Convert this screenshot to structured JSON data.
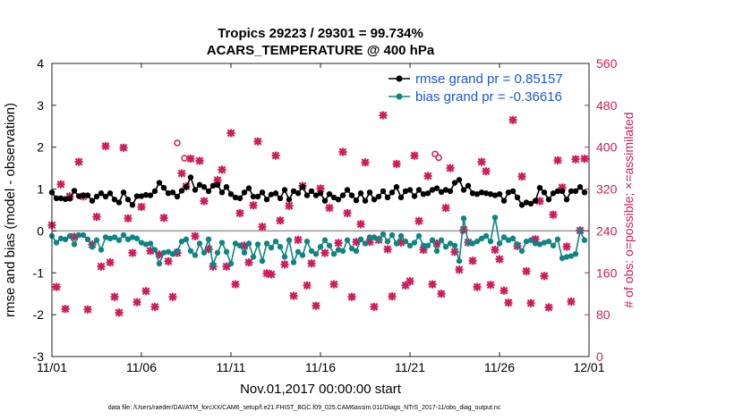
{
  "chart_data": {
    "type": "line",
    "title_line1": "Tropics 29223 / 29301 = 99.734%",
    "title_line2": "ACARS_TEMPERATURE @ 400 hPa",
    "ylabel": "rmse and bias (model - observation)",
    "ylabel_right": "# of obs: o=possible; ×=assimilated",
    "xlabel": "Nov.01,2017 00:00:00 start",
    "footer": "data file: /Users/raeder/DAI/ATM_forcXX/CAM6_setup/f.e21.FHIST_BGC.f09_025.CAM6assim.011/Diags_NTrS_2017-11/obs_diag_output.nc",
    "x_tick_labels": [
      "11/01",
      "11/06",
      "11/11",
      "11/16",
      "11/21",
      "11/26",
      "12/01"
    ],
    "x_tick_days": [
      0,
      5,
      10,
      15,
      20,
      25,
      30
    ],
    "y_tick_labels": [
      "-3",
      "-2",
      "-1",
      "0",
      "1",
      "2",
      "3",
      "4"
    ],
    "ylim": [
      -3,
      4
    ],
    "y2_tick_labels": [
      "0",
      "80",
      "160",
      "240",
      "320",
      "400",
      "480",
      "560"
    ],
    "y2lim": [
      0,
      560
    ],
    "xlim": [
      0,
      30
    ],
    "x": [
      0.0,
      0.25,
      0.5,
      0.75,
      1.0,
      1.25,
      1.5,
      1.75,
      2.0,
      2.25,
      2.5,
      2.75,
      3.0,
      3.25,
      3.5,
      3.75,
      4.0,
      4.25,
      4.5,
      4.75,
      5.0,
      5.25,
      5.5,
      5.75,
      6.0,
      6.25,
      6.5,
      6.75,
      7.0,
      7.25,
      7.5,
      7.75,
      8.0,
      8.25,
      8.5,
      8.75,
      9.0,
      9.25,
      9.5,
      9.75,
      10.0,
      10.25,
      10.5,
      10.75,
      11.0,
      11.25,
      11.5,
      11.75,
      12.0,
      12.25,
      12.5,
      12.75,
      13.0,
      13.25,
      13.5,
      13.75,
      14.0,
      14.25,
      14.5,
      14.75,
      15.0,
      15.25,
      15.5,
      15.75,
      16.0,
      16.25,
      16.5,
      16.75,
      17.0,
      17.25,
      17.5,
      17.75,
      18.0,
      18.25,
      18.5,
      18.75,
      19.0,
      19.25,
      19.5,
      19.75,
      20.0,
      20.25,
      20.5,
      20.75,
      21.0,
      21.25,
      21.5,
      21.75,
      22.0,
      22.25,
      22.5,
      22.75,
      23.0,
      23.25,
      23.5,
      23.75,
      24.0,
      24.25,
      24.5,
      24.75,
      25.0,
      25.25,
      25.5,
      25.75,
      26.0,
      26.25,
      26.5,
      26.75,
      27.0,
      27.25,
      27.5,
      27.75,
      28.0,
      28.25,
      28.5,
      28.75,
      29.0,
      29.25,
      29.5,
      29.75
    ],
    "series": [
      {
        "name": "rmse grand pr = 0.85157",
        "color": "#000000",
        "marker": "circle",
        "values": [
          0.92,
          0.78,
          0.78,
          0.76,
          0.77,
          0.96,
          0.83,
          0.85,
          0.85,
          0.72,
          0.82,
          0.9,
          0.82,
          0.9,
          0.75,
          0.68,
          0.92,
          0.75,
          0.62,
          0.83,
          0.83,
          0.86,
          0.85,
          0.95,
          1.15,
          1.03,
          0.9,
          0.92,
          0.82,
          0.96,
          1.05,
          1.28,
          0.98,
          1.1,
          1.05,
          0.95,
          1.08,
          1.1,
          0.92,
          1.05,
          0.88,
          0.8,
          0.78,
          0.92,
          1.02,
          0.82,
          0.82,
          0.92,
          0.75,
          0.87,
          0.9,
          0.78,
          0.98,
          0.75,
          0.95,
          0.9,
          1.05,
          0.85,
          0.95,
          0.85,
          0.9,
          0.72,
          0.88,
          0.8,
          0.75,
          0.85,
          0.98,
          0.85,
          0.73,
          0.9,
          0.72,
          0.92,
          0.75,
          0.82,
          0.95,
          0.8,
          0.92,
          1.05,
          0.8,
          0.95,
          0.98,
          0.83,
          0.98,
          0.88,
          0.9,
          0.98,
          1.02,
          0.93,
          0.98,
          0.95,
          1.15,
          1.22,
          0.98,
          1.08,
          0.9,
          0.88,
          0.92,
          0.9,
          0.88,
          0.85,
          0.88,
          0.72,
          0.92,
          0.95,
          0.8,
          0.62,
          0.68,
          0.65,
          0.72,
          1.03,
          0.92,
          0.75,
          0.9,
          0.95,
          0.95,
          0.75,
          0.95,
          0.95,
          1.05,
          0.92
        ]
      },
      {
        "name": "bias grand pr = -0.36616",
        "color": "#0e8582",
        "marker": "circle",
        "values": [
          -0.12,
          -0.28,
          -0.18,
          -0.2,
          -0.12,
          -0.32,
          -0.1,
          -0.1,
          -0.2,
          -0.38,
          -0.22,
          -0.45,
          -0.15,
          -0.18,
          -0.15,
          -0.22,
          -0.1,
          -0.2,
          -0.15,
          -0.18,
          -0.28,
          -0.32,
          -0.3,
          -0.45,
          -0.78,
          -0.52,
          -0.5,
          -0.55,
          -0.48,
          -0.25,
          -0.2,
          -0.48,
          -0.58,
          -0.3,
          -0.52,
          -0.2,
          -0.8,
          -0.52,
          -0.28,
          -0.5,
          -0.78,
          -0.3,
          -0.35,
          -0.52,
          -0.3,
          -0.62,
          -0.32,
          -0.72,
          -0.3,
          -0.4,
          -0.25,
          -0.38,
          -0.62,
          -0.22,
          -0.75,
          -0.5,
          -0.58,
          -0.25,
          -0.48,
          -0.55,
          -0.38,
          -0.22,
          -0.35,
          -0.55,
          -0.45,
          -0.48,
          -0.22,
          -0.42,
          -0.48,
          -0.2,
          -0.3,
          -0.15,
          -0.15,
          -0.2,
          -0.08,
          -0.25,
          -0.1,
          -0.3,
          -0.12,
          -0.25,
          -0.35,
          -0.28,
          -0.12,
          -0.35,
          -0.35,
          -0.22,
          -0.48,
          -0.22,
          -0.38,
          -0.3,
          -0.35,
          -0.72,
          0.3,
          -0.28,
          -0.3,
          -0.25,
          -0.18,
          -0.12,
          -0.25,
          0.32,
          -0.3,
          -0.15,
          -0.22,
          -0.18,
          -0.32,
          -0.48,
          -0.25,
          -0.22,
          -0.3,
          -0.32,
          -0.28,
          -0.25,
          -0.35,
          -0.2,
          -0.65,
          -0.62,
          -0.6,
          -0.55,
          0.0,
          -0.22
        ]
      }
    ],
    "obs_possible": {
      "name": "# of obs possible",
      "color": "#d01c5b",
      "marker": "o",
      "x": [
        7.0,
        7.4,
        21.4,
        21.6
      ],
      "values": [
        408,
        379,
        387,
        380
      ]
    },
    "obs_assimilated": {
      "name": "# of obs assimilated",
      "color": "#d01c5b",
      "marker": "×",
      "x": [
        0.0,
        0.25,
        0.5,
        0.75,
        1.0,
        1.25,
        1.5,
        1.75,
        2.0,
        2.25,
        2.5,
        2.75,
        3.0,
        3.25,
        3.5,
        3.75,
        4.0,
        4.25,
        4.5,
        4.75,
        5.0,
        5.25,
        5.5,
        5.75,
        6.0,
        6.25,
        6.5,
        6.75,
        7.0,
        7.25,
        7.5,
        7.75,
        8.0,
        8.25,
        8.5,
        8.75,
        9.0,
        9.25,
        9.5,
        9.75,
        10.0,
        10.25,
        10.5,
        10.75,
        11.0,
        11.25,
        11.5,
        11.75,
        12.0,
        12.25,
        12.5,
        12.75,
        13.0,
        13.25,
        13.5,
        13.75,
        14.0,
        14.25,
        14.5,
        14.75,
        15.0,
        15.25,
        15.5,
        15.75,
        16.0,
        16.25,
        16.5,
        16.75,
        17.0,
        17.25,
        17.5,
        17.75,
        18.0,
        18.25,
        18.5,
        18.75,
        19.0,
        19.25,
        19.5,
        19.75,
        20.0,
        20.25,
        20.5,
        20.75,
        21.0,
        21.25,
        21.5,
        21.75,
        22.0,
        22.25,
        22.5,
        22.75,
        23.0,
        23.25,
        23.5,
        23.75,
        24.0,
        24.25,
        24.5,
        24.75,
        25.0,
        25.25,
        25.5,
        25.75,
        26.0,
        26.25,
        26.5,
        26.75,
        27.0,
        27.25,
        27.5,
        27.75,
        28.0,
        28.25,
        28.5,
        28.75,
        29.0,
        29.25,
        29.5,
        29.75
      ],
      "values": [
        251,
        133,
        329,
        91,
        306,
        229,
        372,
        306,
        90,
        214,
        267,
        172,
        402,
        180,
        114,
        84,
        399,
        264,
        198,
        104,
        286,
        125,
        202,
        95,
        195,
        265,
        182,
        114,
        198,
        350,
        325,
        378,
        230,
        374,
        297,
        205,
        172,
        337,
        357,
        172,
        427,
        138,
        274,
        212,
        180,
        289,
        411,
        248,
        159,
        157,
        384,
        260,
        176,
        288,
        116,
        223,
        326,
        136,
        178,
        97,
        321,
        198,
        284,
        138,
        217,
        391,
        274,
        114,
        219,
        253,
        371,
        219,
        95,
        223,
        461,
        205,
        115,
        368,
        218,
        136,
        144,
        384,
        259,
        204,
        345,
        138,
        216,
        120,
        284,
        360,
        200,
        166,
        242,
        218,
        183,
        133,
        372,
        354,
        137,
        204,
        186,
        126,
        103,
        452,
        211,
        344,
        163,
        102,
        224,
        297,
        154,
        94,
        271,
        375,
        323,
        210,
        105,
        377,
        241,
        378
      ]
    },
    "legend_location": "top-right"
  }
}
